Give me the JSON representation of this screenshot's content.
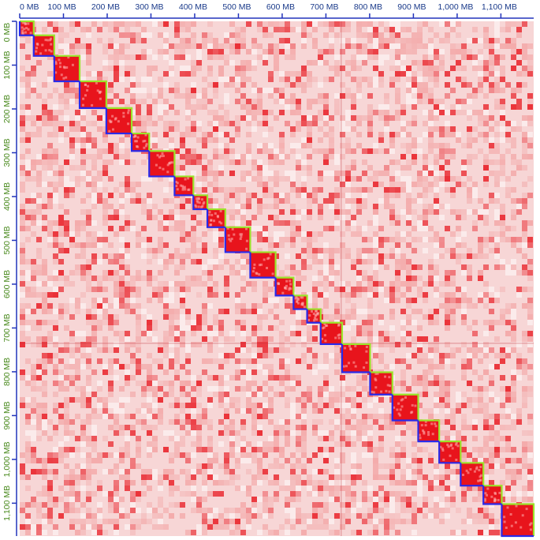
{
  "colors": {
    "background": "#ffffff",
    "matrix_base": "#f7d6d6",
    "contact_high": "#e8141c",
    "contact_mid": "#ef6a6a",
    "axis_line": "#2233bb",
    "axis_text": "#1a3a8a",
    "y_axis_text": "#4a8a1e",
    "scaffold_green": "#9be52a",
    "scaffold_blue": "#2a2ae8"
  },
  "chart_data": {
    "type": "heatmap",
    "title": "",
    "xlabel": "",
    "ylabel": "",
    "unit": "MB",
    "xlim": [
      0,
      1175
    ],
    "ylim": [
      0,
      1175
    ],
    "x_ticks": [
      "0 MB",
      "100 MB",
      "200 MB",
      "300 MB",
      "400 MB",
      "500 MB",
      "600 MB",
      "700 MB",
      "800 MB",
      "900 MB",
      "1,000 MB",
      "1,100 MB"
    ],
    "y_ticks": [
      "0 MB",
      "100 MB",
      "200 MB",
      "300 MB",
      "400 MB",
      "500 MB",
      "600 MB",
      "700 MB",
      "800 MB",
      "900 MB",
      "1,000 MB",
      "1,100 MB"
    ],
    "tick_values": [
      0,
      100,
      200,
      300,
      400,
      500,
      600,
      700,
      800,
      900,
      1000,
      1100
    ],
    "blocks_mb": [
      [
        0,
        32
      ],
      [
        32,
        79
      ],
      [
        79,
        137
      ],
      [
        137,
        198
      ],
      [
        198,
        256
      ],
      [
        256,
        296
      ],
      [
        296,
        354
      ],
      [
        354,
        397
      ],
      [
        397,
        429
      ],
      [
        429,
        470
      ],
      [
        470,
        527
      ],
      [
        527,
        585
      ],
      [
        585,
        626
      ],
      [
        626,
        657
      ],
      [
        657,
        688
      ],
      [
        688,
        737
      ],
      [
        737,
        801
      ],
      [
        801,
        852
      ],
      [
        852,
        911
      ],
      [
        911,
        959
      ],
      [
        959,
        1008
      ],
      [
        1008,
        1060
      ],
      [
        1060,
        1102
      ],
      [
        1102,
        1175
      ]
    ],
    "grid": false,
    "legend": "none"
  }
}
